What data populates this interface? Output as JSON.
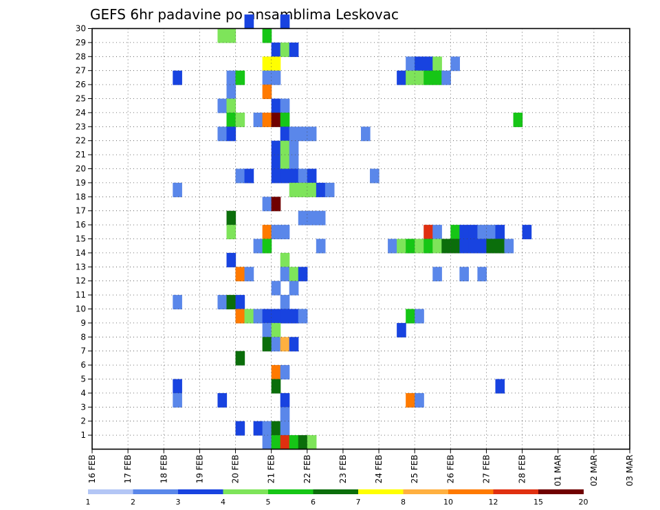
{
  "chart_data": {
    "type": "heatmap",
    "title": "GEFS 6hr padavine po ansamblima Leskovac",
    "x_tick_labels": [
      "16 FEB",
      "17 FEB",
      "18 FEB",
      "19 FEB",
      "20 FEB",
      "21 FEB",
      "22 FEB",
      "23 FEB",
      "24 FEB",
      "25 FEB",
      "26 FEB",
      "27 FEB",
      "28 FEB",
      "01 MAR",
      "02 MAR",
      "03 MAR"
    ],
    "y_tick_labels": [
      "1",
      "2",
      "3",
      "4",
      "5",
      "6",
      "7",
      "8",
      "9",
      "10",
      "11",
      "12",
      "13",
      "14",
      "15",
      "16",
      "17",
      "18",
      "19",
      "20",
      "21",
      "22",
      "23",
      "24",
      "25",
      "26",
      "27",
      "28",
      "29",
      "30"
    ],
    "ylim": [
      0,
      30
    ],
    "grid": true,
    "time_step_hours": 6,
    "colorbar": {
      "labels": [
        "1",
        "2",
        "3",
        "4",
        "5",
        "6",
        "7",
        "8",
        "10",
        "12",
        "15",
        "20"
      ],
      "colors": [
        "#b3c6f5",
        "#5a87ea",
        "#1843e0",
        "#7ee45a",
        "#16c616",
        "#0b6e0b",
        "#ffff00",
        "#ffb040",
        "#ff7a00",
        "#e03010",
        "#700000"
      ]
    },
    "cells": [
      [
        17,
        30,
        3
      ],
      [
        21,
        30,
        3
      ],
      [
        14,
        29,
        4
      ],
      [
        15,
        29,
        4
      ],
      [
        19,
        29,
        5
      ],
      [
        20,
        28,
        3
      ],
      [
        21,
        28,
        4
      ],
      [
        22,
        28,
        3
      ],
      [
        19,
        27,
        7
      ],
      [
        20,
        27,
        7
      ],
      [
        35,
        27,
        2
      ],
      [
        36,
        27,
        3
      ],
      [
        37,
        27,
        3
      ],
      [
        38,
        27,
        4
      ],
      [
        40,
        27,
        2
      ],
      [
        9,
        26,
        3
      ],
      [
        15,
        26,
        2
      ],
      [
        16,
        26,
        5
      ],
      [
        19,
        26,
        2
      ],
      [
        20,
        26,
        2
      ],
      [
        34,
        26,
        3
      ],
      [
        35,
        26,
        4
      ],
      [
        36,
        26,
        4
      ],
      [
        37,
        26,
        5
      ],
      [
        38,
        26,
        5
      ],
      [
        39,
        26,
        2
      ],
      [
        15,
        25,
        2
      ],
      [
        19,
        25,
        10
      ],
      [
        14,
        24,
        2
      ],
      [
        15,
        24,
        4
      ],
      [
        20,
        24,
        3
      ],
      [
        21,
        24,
        2
      ],
      [
        15,
        23,
        5
      ],
      [
        16,
        23,
        4
      ],
      [
        18,
        23,
        2
      ],
      [
        19,
        23,
        10
      ],
      [
        20,
        23,
        20
      ],
      [
        21,
        23,
        5
      ],
      [
        47,
        23,
        5
      ],
      [
        14,
        22,
        2
      ],
      [
        15,
        22,
        3
      ],
      [
        21,
        22,
        3
      ],
      [
        22,
        22,
        2
      ],
      [
        23,
        22,
        2
      ],
      [
        24,
        22,
        2
      ],
      [
        30,
        22,
        2
      ],
      [
        20,
        21,
        3
      ],
      [
        21,
        21,
        4
      ],
      [
        22,
        21,
        2
      ],
      [
        20,
        20,
        3
      ],
      [
        21,
        20,
        4
      ],
      [
        22,
        20,
        2
      ],
      [
        16,
        19,
        2
      ],
      [
        17,
        19,
        3
      ],
      [
        20,
        19,
        3
      ],
      [
        21,
        19,
        3
      ],
      [
        22,
        19,
        3
      ],
      [
        23,
        19,
        2
      ],
      [
        24,
        19,
        3
      ],
      [
        31,
        19,
        2
      ],
      [
        9,
        18,
        2
      ],
      [
        22,
        18,
        4
      ],
      [
        23,
        18,
        4
      ],
      [
        24,
        18,
        4
      ],
      [
        25,
        18,
        3
      ],
      [
        26,
        18,
        2
      ],
      [
        19,
        17,
        2
      ],
      [
        20,
        17,
        15
      ],
      [
        15,
        16,
        6
      ],
      [
        23,
        16,
        2
      ],
      [
        24,
        16,
        2
      ],
      [
        25,
        16,
        2
      ],
      [
        15,
        15,
        4
      ],
      [
        19,
        15,
        10
      ],
      [
        20,
        15,
        2
      ],
      [
        21,
        15,
        2
      ],
      [
        37,
        15,
        12
      ],
      [
        38,
        15,
        2
      ],
      [
        40,
        15,
        5
      ],
      [
        41,
        15,
        3
      ],
      [
        42,
        15,
        3
      ],
      [
        43,
        15,
        2
      ],
      [
        44,
        15,
        2
      ],
      [
        45,
        15,
        3
      ],
      [
        48,
        15,
        3
      ],
      [
        18,
        14,
        2
      ],
      [
        19,
        14,
        5
      ],
      [
        25,
        14,
        2
      ],
      [
        33,
        14,
        2
      ],
      [
        34,
        14,
        4
      ],
      [
        35,
        14,
        5
      ],
      [
        36,
        14,
        4
      ],
      [
        37,
        14,
        5
      ],
      [
        38,
        14,
        4
      ],
      [
        39,
        14,
        6
      ],
      [
        40,
        14,
        6
      ],
      [
        41,
        14,
        3
      ],
      [
        42,
        14,
        3
      ],
      [
        43,
        14,
        3
      ],
      [
        44,
        14,
        6
      ],
      [
        45,
        14,
        6
      ],
      [
        46,
        14,
        2
      ],
      [
        15,
        13,
        3
      ],
      [
        21,
        13,
        4
      ],
      [
        16,
        12,
        10
      ],
      [
        17,
        12,
        2
      ],
      [
        21,
        12,
        2
      ],
      [
        22,
        12,
        4
      ],
      [
        23,
        12,
        3
      ],
      [
        38,
        12,
        2
      ],
      [
        41,
        12,
        2
      ],
      [
        43,
        12,
        2
      ],
      [
        20,
        11,
        2
      ],
      [
        22,
        11,
        2
      ],
      [
        9,
        10,
        2
      ],
      [
        14,
        10,
        2
      ],
      [
        15,
        10,
        6
      ],
      [
        16,
        10,
        3
      ],
      [
        21,
        10,
        2
      ],
      [
        16,
        9,
        10
      ],
      [
        17,
        9,
        4
      ],
      [
        18,
        9,
        2
      ],
      [
        19,
        9,
        3
      ],
      [
        20,
        9,
        3
      ],
      [
        21,
        9,
        3
      ],
      [
        22,
        9,
        3
      ],
      [
        23,
        9,
        2
      ],
      [
        35,
        9,
        5
      ],
      [
        36,
        9,
        2
      ],
      [
        19,
        8,
        2
      ],
      [
        20,
        8,
        4
      ],
      [
        34,
        8,
        3
      ],
      [
        19,
        7,
        6
      ],
      [
        20,
        7,
        2
      ],
      [
        21,
        7,
        8
      ],
      [
        22,
        7,
        3
      ],
      [
        16,
        6,
        6
      ],
      [
        20,
        5,
        10
      ],
      [
        21,
        5,
        2
      ],
      [
        9,
        4,
        3
      ],
      [
        20,
        4,
        6
      ],
      [
        45,
        4,
        3
      ],
      [
        9,
        3,
        2
      ],
      [
        14,
        3,
        3
      ],
      [
        21,
        3,
        3
      ],
      [
        35,
        3,
        10
      ],
      [
        36,
        3,
        2
      ],
      [
        21,
        2,
        2
      ],
      [
        16,
        1,
        3
      ],
      [
        18,
        1,
        3
      ],
      [
        19,
        1,
        2
      ],
      [
        20,
        1,
        6
      ],
      [
        21,
        1,
        2
      ],
      [
        19,
        0,
        2
      ],
      [
        20,
        0,
        5
      ],
      [
        21,
        0,
        12
      ],
      [
        22,
        0,
        5
      ],
      [
        23,
        0,
        6
      ],
      [
        24,
        0,
        4
      ]
    ]
  }
}
